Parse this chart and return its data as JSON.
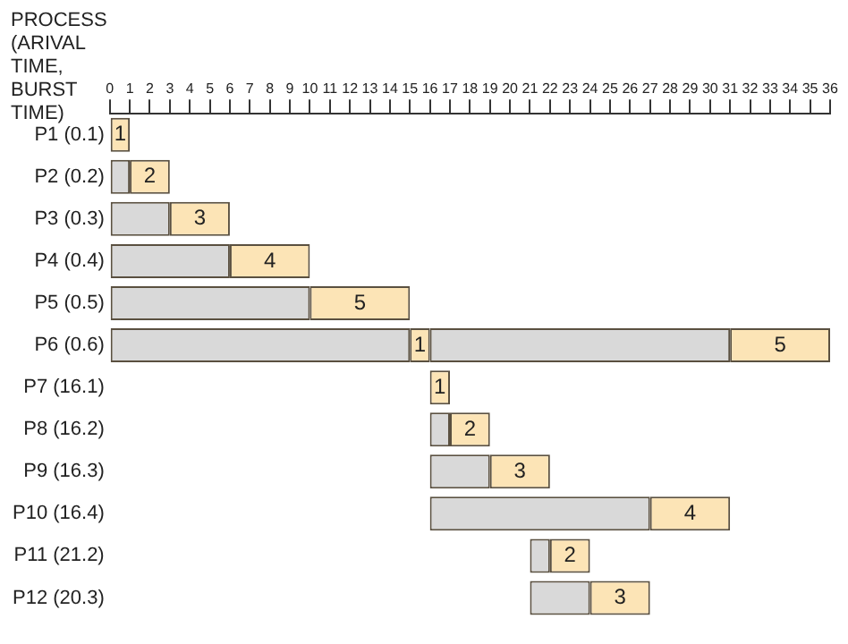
{
  "chart_data": {
    "type": "bar",
    "orientation": "horizontal",
    "ylabel": "PROCESS (ARIVAL TIME, BURST TIME)",
    "categories": [
      "P1 (0.1)",
      "P2 (0.2)",
      "P3 (0.3)",
      "P4 (0.4)",
      "P5 (0.5)",
      "P6 (0.6)",
      "P7 (16.1)",
      "P8 (16.2)",
      "P9 (16.3)",
      "P10 (16.4)",
      "P11 (21.2)",
      "P12 (20.3)"
    ],
    "series": [
      {
        "color": "#d9d9d9",
        "base": [
          null,
          0,
          0,
          0,
          0,
          0,
          null,
          16,
          16,
          16,
          21,
          21
        ],
        "values": [
          null,
          1,
          3,
          6,
          10,
          15,
          null,
          1,
          3,
          11,
          1,
          3
        ]
      },
      {
        "color": "#fce4b6",
        "base": [
          0,
          1,
          3,
          6,
          10,
          15,
          16,
          17,
          19,
          27,
          22,
          24
        ],
        "values": [
          1,
          2,
          3,
          4,
          5,
          1,
          1,
          2,
          3,
          4,
          2,
          3
        ],
        "value_labels": [
          "1",
          "2",
          "3",
          "4",
          "5",
          "1",
          "1",
          "2",
          "3",
          "4",
          "2",
          "3"
        ]
      },
      {
        "color": "#d9d9d9",
        "base": [
          null,
          null,
          null,
          null,
          null,
          16,
          null,
          null,
          null,
          null,
          null,
          null
        ],
        "values": [
          null,
          null,
          null,
          null,
          null,
          15,
          null,
          null,
          null,
          null,
          null,
          null
        ]
      },
      {
        "color": "#fce4b6",
        "base": [
          null,
          null,
          null,
          null,
          null,
          31,
          null,
          null,
          null,
          null,
          null,
          null
        ],
        "values": [
          null,
          null,
          null,
          null,
          null,
          5,
          null,
          null,
          null,
          null,
          null,
          null
        ],
        "value_labels": [
          null,
          null,
          null,
          null,
          null,
          "5",
          null,
          null,
          null,
          null,
          null,
          null
        ]
      }
    ],
    "xlim": [
      0,
      36
    ],
    "xticks": [
      0,
      1,
      2,
      3,
      4,
      5,
      6,
      7,
      8,
      9,
      10,
      11,
      12,
      13,
      14,
      15,
      16,
      17,
      18,
      19,
      20,
      21,
      22,
      23,
      24,
      25,
      26,
      27,
      28,
      29,
      30,
      31,
      32,
      33,
      34,
      35,
      36
    ],
    "grid": false,
    "legend": false
  }
}
